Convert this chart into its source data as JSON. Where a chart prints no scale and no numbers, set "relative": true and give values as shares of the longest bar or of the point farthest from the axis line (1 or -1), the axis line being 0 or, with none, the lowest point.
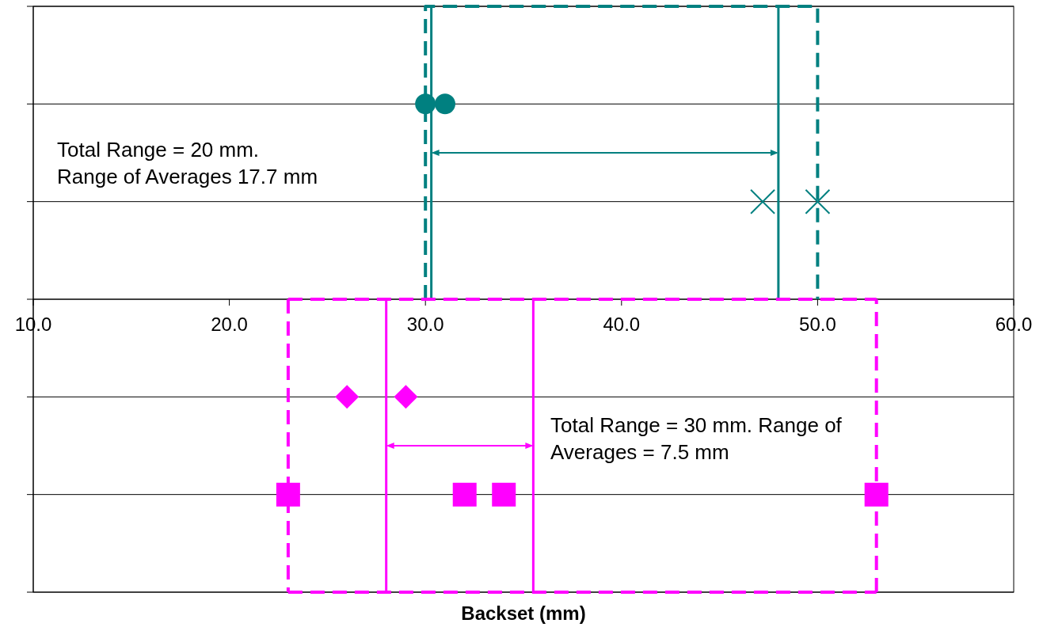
{
  "chart_data": {
    "type": "scatter",
    "relative": true,
    "xlabel": "Backset (mm)",
    "xlim": [
      10,
      60
    ],
    "xticks": [
      {
        "value": 10,
        "label": "10.0"
      },
      {
        "value": 20,
        "label": "20.0"
      },
      {
        "value": 30,
        "label": "30.0"
      },
      {
        "value": 40,
        "label": "40.0"
      },
      {
        "value": 50,
        "label": "50.0"
      },
      {
        "value": 60,
        "label": "60.0"
      }
    ],
    "grid": "y",
    "annotations": [
      "Total Range = 20 mm. Range of Averages 17.7 mm",
      "Total Range = 30 mm. Range of Averages = 7.5 mm"
    ],
    "series": [
      {
        "type": "line",
        "color": "#008080",
        "line_style": "dashed",
        "x": [
          30,
          30,
          50,
          50
        ],
        "values": [
          0,
          1,
          1,
          0
        ]
      },
      {
        "type": "line",
        "color": "#008080",
        "line_style": "solid",
        "x": [
          30.3,
          30.3
        ],
        "values": [
          0,
          1
        ]
      },
      {
        "type": "line",
        "color": "#008080",
        "line_style": "solid",
        "x": [
          48,
          48
        ],
        "values": [
          0,
          1
        ]
      },
      {
        "color": "#008080",
        "marker": "circle",
        "x": [
          30,
          31
        ],
        "values": [
          0.667,
          0.667
        ]
      },
      {
        "color": "#008080",
        "marker": "cross",
        "x": [
          47.2,
          50
        ],
        "values": [
          0.333,
          0.333
        ]
      },
      {
        "type": "line",
        "color": "#ff00ff",
        "line_style": "dashed",
        "x": [
          23,
          53
        ],
        "values": [
          0,
          0
        ]
      },
      {
        "type": "line",
        "color": "#ff00ff",
        "line_style": "dashed",
        "x": [
          23,
          23
        ],
        "values": [
          0,
          -1
        ]
      },
      {
        "type": "line",
        "color": "#ff00ff",
        "line_style": "dashed",
        "x": [
          23,
          53
        ],
        "values": [
          -1,
          -1
        ]
      },
      {
        "type": "line",
        "color": "#ff00ff",
        "line_style": "dashed",
        "x": [
          53,
          53
        ],
        "values": [
          -1,
          0
        ]
      },
      {
        "type": "line",
        "color": "#ff00ff",
        "line_style": "solid",
        "x": [
          28,
          28
        ],
        "values": [
          0,
          -1
        ]
      },
      {
        "type": "line",
        "color": "#ff00ff",
        "line_style": "solid",
        "x": [
          35.5,
          35.5
        ],
        "values": [
          0,
          -1
        ]
      },
      {
        "color": "#ff00ff",
        "marker": "diamond",
        "x": [
          26,
          29
        ],
        "values": [
          -0.333,
          -0.333
        ]
      },
      {
        "color": "#ff00ff",
        "marker": "square",
        "x": [
          23,
          32,
          34,
          53
        ],
        "values": [
          -0.667,
          -0.667,
          -0.667,
          -0.667
        ]
      }
    ]
  }
}
